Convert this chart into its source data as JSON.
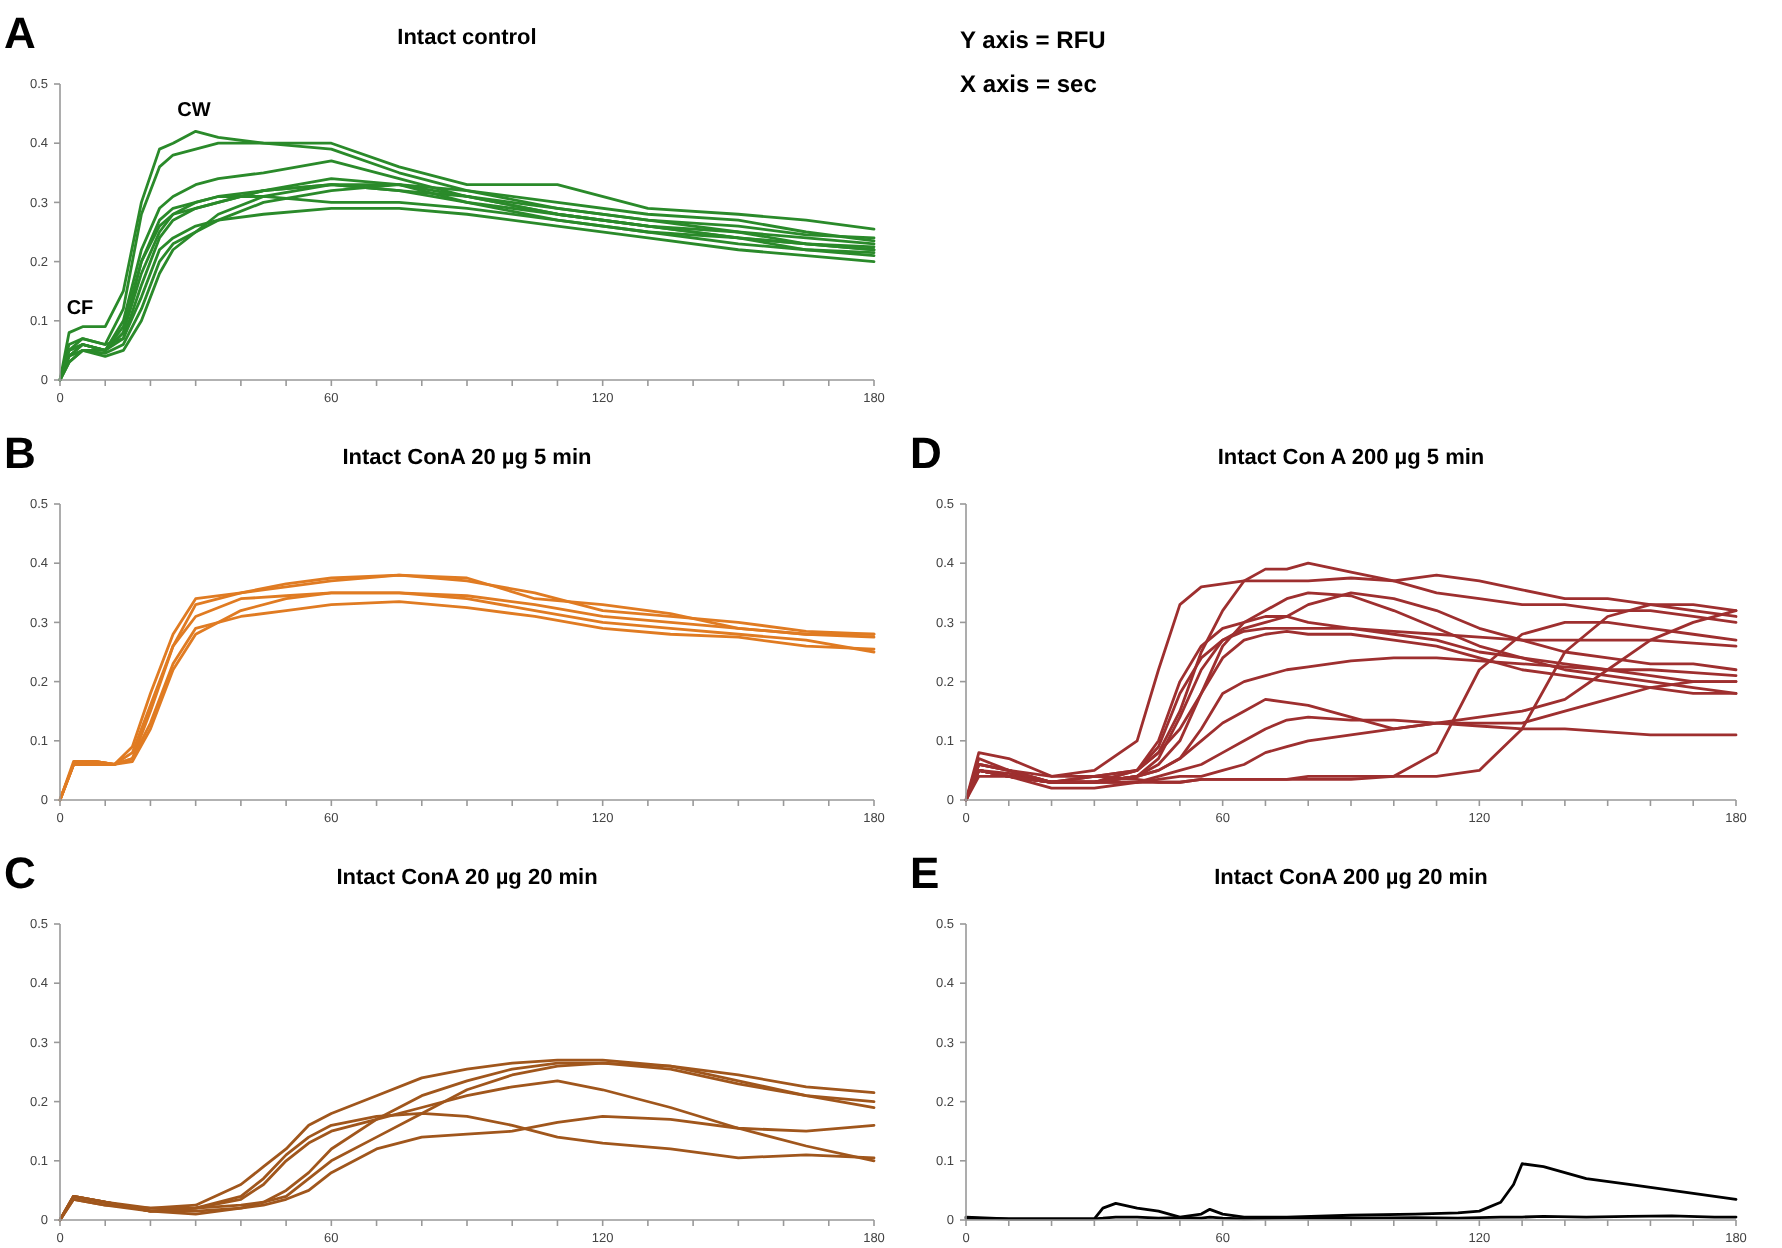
{
  "chart_data": [
    {
      "type": "line",
      "title": "Intact control",
      "xlim": [
        0,
        180
      ],
      "ylim": [
        0,
        0.5
      ],
      "xticks": [
        0,
        {
          "value": 10,
          "label": null
        },
        {
          "value": 20,
          "label": null
        },
        {
          "value": 30,
          "label": null
        },
        {
          "value": 40,
          "label": null
        },
        {
          "value": 50,
          "label": null
        },
        60,
        {
          "value": 70,
          "label": null
        },
        {
          "value": 80,
          "label": null
        },
        {
          "value": 90,
          "label": null
        },
        {
          "value": 100,
          "label": null
        },
        {
          "value": 110,
          "label": null
        },
        120,
        {
          "value": 130,
          "label": null
        },
        {
          "value": 140,
          "label": null
        },
        {
          "value": 150,
          "label": null
        },
        {
          "value": 160,
          "label": null
        },
        {
          "value": 170,
          "label": null
        },
        180
      ],
      "yticks": [
        0,
        0.1,
        0.2,
        0.3,
        0.4,
        0.5
      ],
      "annotations": [
        "A",
        "Y axis = RFU",
        "X axis = sec",
        "CW",
        "CF"
      ],
      "x": [
        0,
        2,
        5,
        10,
        14,
        18,
        22,
        25,
        30,
        35,
        45,
        60,
        75,
        90,
        110,
        130,
        150,
        165,
        180
      ],
      "series": [
        {
          "color": "#2a8a2a",
          "values": [
            0,
            0.08,
            0.09,
            0.09,
            0.15,
            0.3,
            0.39,
            0.4,
            0.42,
            0.41,
            0.4,
            0.39,
            0.35,
            0.32,
            0.29,
            0.27,
            0.26,
            0.245,
            0.24
          ]
        },
        {
          "color": "#2a8a2a",
          "values": [
            0,
            0.06,
            0.07,
            0.06,
            0.12,
            0.28,
            0.36,
            0.38,
            0.39,
            0.4,
            0.4,
            0.4,
            0.36,
            0.33,
            0.33,
            0.29,
            0.28,
            0.27,
            0.255
          ]
        },
        {
          "color": "#2a8a2a",
          "values": [
            0,
            0.05,
            0.06,
            0.05,
            0.1,
            0.22,
            0.29,
            0.31,
            0.33,
            0.34,
            0.35,
            0.37,
            0.34,
            0.31,
            0.28,
            0.26,
            0.24,
            0.23,
            0.22
          ]
        },
        {
          "color": "#2a8a2a",
          "values": [
            0,
            0.04,
            0.06,
            0.05,
            0.08,
            0.2,
            0.27,
            0.29,
            0.3,
            0.31,
            0.32,
            0.34,
            0.33,
            0.3,
            0.27,
            0.25,
            0.24,
            0.22,
            0.21
          ]
        },
        {
          "color": "#2a8a2a",
          "values": [
            0,
            0.05,
            0.07,
            0.06,
            0.07,
            0.16,
            0.24,
            0.27,
            0.29,
            0.3,
            0.32,
            0.33,
            0.32,
            0.31,
            0.28,
            0.26,
            0.24,
            0.23,
            0.225
          ]
        },
        {
          "color": "#2a8a2a",
          "values": [
            0,
            0.03,
            0.05,
            0.045,
            0.06,
            0.12,
            0.2,
            0.23,
            0.25,
            0.27,
            0.3,
            0.32,
            0.33,
            0.31,
            0.29,
            0.27,
            0.25,
            0.24,
            0.23
          ]
        },
        {
          "color": "#2a8a2a",
          "values": [
            0,
            0.04,
            0.05,
            0.04,
            0.05,
            0.1,
            0.18,
            0.22,
            0.25,
            0.28,
            0.31,
            0.33,
            0.32,
            0.3,
            0.28,
            0.26,
            0.25,
            0.23,
            0.22
          ]
        },
        {
          "color": "#2a8a2a",
          "values": [
            0,
            0.03,
            0.05,
            0.05,
            0.07,
            0.14,
            0.22,
            0.24,
            0.26,
            0.27,
            0.28,
            0.29,
            0.29,
            0.28,
            0.26,
            0.24,
            0.22,
            0.21,
            0.2
          ]
        },
        {
          "color": "#2a8a2a",
          "values": [
            0,
            0.04,
            0.06,
            0.05,
            0.08,
            0.18,
            0.25,
            0.28,
            0.3,
            0.31,
            0.31,
            0.3,
            0.3,
            0.29,
            0.27,
            0.25,
            0.23,
            0.22,
            0.215
          ]
        },
        {
          "color": "#2a8a2a",
          "values": [
            0,
            0.05,
            0.06,
            0.05,
            0.09,
            0.2,
            0.26,
            0.28,
            0.29,
            0.3,
            0.32,
            0.33,
            0.33,
            0.32,
            0.3,
            0.28,
            0.27,
            0.25,
            0.235
          ]
        }
      ]
    },
    {
      "type": "line",
      "title": "Intact ConA 20 µg 5 min",
      "xlim": [
        0,
        180
      ],
      "ylim": [
        0,
        0.5
      ],
      "xticks": [
        0,
        {
          "value": 10,
          "label": null
        },
        {
          "value": 20,
          "label": null
        },
        {
          "value": 30,
          "label": null
        },
        {
          "value": 40,
          "label": null
        },
        {
          "value": 50,
          "label": null
        },
        60,
        {
          "value": 70,
          "label": null
        },
        {
          "value": 80,
          "label": null
        },
        {
          "value": 90,
          "label": null
        },
        {
          "value": 100,
          "label": null
        },
        {
          "value": 110,
          "label": null
        },
        120,
        {
          "value": 130,
          "label": null
        },
        {
          "value": 140,
          "label": null
        },
        {
          "value": 150,
          "label": null
        },
        {
          "value": 160,
          "label": null
        },
        {
          "value": 170,
          "label": null
        },
        180
      ],
      "yticks": [
        0,
        0.1,
        0.2,
        0.3,
        0.4,
        0.5
      ],
      "annotations": [
        "B"
      ],
      "x": [
        0,
        3,
        8,
        12,
        16,
        20,
        25,
        30,
        40,
        50,
        60,
        75,
        90,
        105,
        120,
        135,
        150,
        165,
        180
      ],
      "series": [
        {
          "color": "#e07b22",
          "values": [
            0,
            0.06,
            0.065,
            0.06,
            0.07,
            0.15,
            0.26,
            0.33,
            0.35,
            0.36,
            0.37,
            0.38,
            0.37,
            0.35,
            0.32,
            0.31,
            0.3,
            0.285,
            0.28
          ]
        },
        {
          "color": "#e07b22",
          "values": [
            0,
            0.065,
            0.065,
            0.06,
            0.09,
            0.18,
            0.28,
            0.34,
            0.35,
            0.365,
            0.375,
            0.38,
            0.375,
            0.34,
            0.33,
            0.315,
            0.29,
            0.28,
            0.275
          ]
        },
        {
          "color": "#e07b22",
          "values": [
            0,
            0.06,
            0.06,
            0.06,
            0.08,
            0.16,
            0.26,
            0.31,
            0.34,
            0.345,
            0.35,
            0.35,
            0.345,
            0.33,
            0.31,
            0.3,
            0.29,
            0.28,
            0.28
          ]
        },
        {
          "color": "#e07b22",
          "values": [
            0,
            0.06,
            0.065,
            0.06,
            0.07,
            0.13,
            0.23,
            0.29,
            0.31,
            0.32,
            0.33,
            0.335,
            0.325,
            0.31,
            0.29,
            0.28,
            0.275,
            0.26,
            0.255
          ]
        },
        {
          "color": "#e07b22",
          "values": [
            0,
            0.06,
            0.065,
            0.06,
            0.065,
            0.12,
            0.22,
            0.28,
            0.32,
            0.34,
            0.35,
            0.35,
            0.34,
            0.32,
            0.3,
            0.29,
            0.28,
            0.27,
            0.25
          ]
        }
      ]
    },
    {
      "type": "line",
      "title": "Intact Con A 200 µg 5 min",
      "xlim": [
        0,
        180
      ],
      "ylim": [
        0,
        0.5
      ],
      "xticks": [
        0,
        {
          "value": 10,
          "label": null
        },
        {
          "value": 20,
          "label": null
        },
        {
          "value": 30,
          "label": null
        },
        {
          "value": 40,
          "label": null
        },
        {
          "value": 50,
          "label": null
        },
        60,
        {
          "value": 70,
          "label": null
        },
        {
          "value": 80,
          "label": null
        },
        {
          "value": 90,
          "label": null
        },
        {
          "value": 100,
          "label": null
        },
        {
          "value": 110,
          "label": null
        },
        120,
        {
          "value": 130,
          "label": null
        },
        {
          "value": 140,
          "label": null
        },
        {
          "value": 150,
          "label": null
        },
        {
          "value": 160,
          "label": null
        },
        {
          "value": 170,
          "label": null
        },
        180
      ],
      "yticks": [
        0,
        0.1,
        0.2,
        0.3,
        0.4,
        0.5
      ],
      "annotations": [
        "D"
      ],
      "x": [
        0,
        3,
        10,
        20,
        30,
        40,
        45,
        50,
        55,
        60,
        65,
        70,
        75,
        80,
        90,
        100,
        110,
        120,
        130,
        140,
        150,
        160,
        170,
        180
      ],
      "series": [
        {
          "color": "#9e2f2f",
          "values": [
            0,
            0.08,
            0.07,
            0.04,
            0.05,
            0.1,
            0.22,
            0.33,
            0.36,
            0.365,
            0.37,
            0.37,
            0.37,
            0.37,
            0.375,
            0.37,
            0.38,
            0.37,
            0.355,
            0.34,
            0.34,
            0.33,
            0.32,
            0.31
          ]
        },
        {
          "color": "#9e2f2f",
          "values": [
            0,
            0.06,
            0.05,
            0.03,
            0.03,
            0.05,
            0.08,
            0.15,
            0.25,
            0.32,
            0.37,
            0.39,
            0.39,
            0.4,
            0.385,
            0.37,
            0.35,
            0.34,
            0.33,
            0.33,
            0.32,
            0.32,
            0.31,
            0.3
          ]
        },
        {
          "color": "#9e2f2f",
          "values": [
            0,
            0.05,
            0.04,
            0.03,
            0.03,
            0.04,
            0.06,
            0.1,
            0.18,
            0.26,
            0.3,
            0.32,
            0.34,
            0.35,
            0.345,
            0.32,
            0.29,
            0.26,
            0.24,
            0.22,
            0.21,
            0.2,
            0.19,
            0.18
          ]
        },
        {
          "color": "#9e2f2f",
          "values": [
            0,
            0.05,
            0.04,
            0.03,
            0.04,
            0.05,
            0.09,
            0.18,
            0.24,
            0.27,
            0.285,
            0.29,
            0.29,
            0.29,
            0.29,
            0.285,
            0.28,
            0.275,
            0.27,
            0.27,
            0.27,
            0.27,
            0.265,
            0.26
          ]
        },
        {
          "color": "#9e2f2f",
          "values": [
            0,
            0.05,
            0.045,
            0.03,
            0.03,
            0.05,
            0.1,
            0.2,
            0.26,
            0.29,
            0.3,
            0.31,
            0.31,
            0.3,
            0.29,
            0.28,
            0.27,
            0.25,
            0.24,
            0.23,
            0.22,
            0.21,
            0.2,
            0.2
          ]
        },
        {
          "color": "#9e2f2f",
          "values": [
            0,
            0.05,
            0.04,
            0.03,
            0.03,
            0.04,
            0.05,
            0.07,
            0.12,
            0.18,
            0.2,
            0.21,
            0.22,
            0.225,
            0.235,
            0.24,
            0.24,
            0.235,
            0.23,
            0.225,
            0.22,
            0.22,
            0.215,
            0.21
          ]
        },
        {
          "color": "#9e2f2f",
          "values": [
            0,
            0.05,
            0.04,
            0.03,
            0.03,
            0.04,
            0.05,
            0.07,
            0.1,
            0.13,
            0.15,
            0.17,
            0.165,
            0.16,
            0.14,
            0.12,
            0.13,
            0.13,
            0.13,
            0.15,
            0.17,
            0.19,
            0.2,
            0.2
          ]
        },
        {
          "color": "#9e2f2f",
          "values": [
            0,
            0.04,
            0.04,
            0.02,
            0.02,
            0.03,
            0.04,
            0.05,
            0.06,
            0.08,
            0.1,
            0.12,
            0.135,
            0.14,
            0.135,
            0.135,
            0.13,
            0.125,
            0.12,
            0.12,
            0.115,
            0.11,
            0.11,
            0.11
          ]
        },
        {
          "color": "#9e2f2f",
          "values": [
            0,
            0.05,
            0.04,
            0.03,
            0.03,
            0.03,
            0.03,
            0.03,
            0.035,
            0.035,
            0.035,
            0.035,
            0.035,
            0.04,
            0.04,
            0.04,
            0.08,
            0.22,
            0.28,
            0.3,
            0.3,
            0.29,
            0.28,
            0.27
          ]
        },
        {
          "color": "#9e2f2f",
          "values": [
            0,
            0.06,
            0.05,
            0.03,
            0.04,
            0.035,
            0.03,
            0.03,
            0.035,
            0.035,
            0.035,
            0.035,
            0.035,
            0.035,
            0.035,
            0.04,
            0.04,
            0.05,
            0.12,
            0.25,
            0.31,
            0.33,
            0.33,
            0.32
          ]
        },
        {
          "color": "#9e2f2f",
          "values": [
            0,
            0.05,
            0.04,
            0.03,
            0.03,
            0.03,
            0.035,
            0.04,
            0.04,
            0.05,
            0.06,
            0.08,
            0.09,
            0.1,
            0.11,
            0.12,
            0.13,
            0.14,
            0.15,
            0.17,
            0.22,
            0.27,
            0.3,
            0.32
          ]
        },
        {
          "color": "#9e2f2f",
          "values": [
            0,
            0.07,
            0.05,
            0.03,
            0.03,
            0.04,
            0.07,
            0.14,
            0.22,
            0.27,
            0.29,
            0.3,
            0.31,
            0.33,
            0.35,
            0.34,
            0.32,
            0.29,
            0.27,
            0.25,
            0.24,
            0.23,
            0.23,
            0.22
          ]
        },
        {
          "color": "#9e2f2f",
          "values": [
            0,
            0.06,
            0.05,
            0.04,
            0.04,
            0.05,
            0.08,
            0.12,
            0.18,
            0.24,
            0.27,
            0.28,
            0.285,
            0.28,
            0.28,
            0.27,
            0.26,
            0.24,
            0.22,
            0.21,
            0.2,
            0.19,
            0.18,
            0.18
          ]
        }
      ]
    },
    {
      "type": "line",
      "title": "Intact  ConA 20 µg 20 min",
      "xlim": [
        0,
        180
      ],
      "ylim": [
        0,
        0.5
      ],
      "xticks": [
        0,
        {
          "value": 10,
          "label": null
        },
        {
          "value": 20,
          "label": null
        },
        {
          "value": 30,
          "label": null
        },
        {
          "value": 40,
          "label": null
        },
        {
          "value": 50,
          "label": null
        },
        60,
        {
          "value": 70,
          "label": null
        },
        {
          "value": 80,
          "label": null
        },
        {
          "value": 90,
          "label": null
        },
        {
          "value": 100,
          "label": null
        },
        {
          "value": 110,
          "label": null
        },
        120,
        {
          "value": 130,
          "label": null
        },
        {
          "value": 140,
          "label": null
        },
        {
          "value": 150,
          "label": null
        },
        {
          "value": 160,
          "label": null
        },
        {
          "value": 170,
          "label": null
        },
        180
      ],
      "yticks": [
        0,
        0.1,
        0.2,
        0.3,
        0.4,
        0.5
      ],
      "annotations": [
        "C"
      ],
      "x": [
        0,
        3,
        10,
        20,
        30,
        40,
        45,
        50,
        55,
        60,
        70,
        80,
        90,
        100,
        110,
        120,
        135,
        150,
        165,
        180
      ],
      "series": [
        {
          "color": "#a0561c",
          "values": [
            0,
            0.04,
            0.03,
            0.02,
            0.025,
            0.06,
            0.09,
            0.12,
            0.16,
            0.18,
            0.21,
            0.24,
            0.255,
            0.265,
            0.27,
            0.27,
            0.26,
            0.245,
            0.225,
            0.215
          ]
        },
        {
          "color": "#a0561c",
          "values": [
            0,
            0.04,
            0.03,
            0.015,
            0.02,
            0.04,
            0.07,
            0.11,
            0.14,
            0.16,
            0.175,
            0.18,
            0.175,
            0.16,
            0.14,
            0.13,
            0.12,
            0.105,
            0.11,
            0.105
          ]
        },
        {
          "color": "#a0561c",
          "values": [
            0,
            0.035,
            0.025,
            0.015,
            0.02,
            0.035,
            0.06,
            0.1,
            0.13,
            0.15,
            0.17,
            0.19,
            0.21,
            0.225,
            0.235,
            0.22,
            0.19,
            0.155,
            0.125,
            0.1
          ]
        },
        {
          "color": "#a0561c",
          "values": [
            0,
            0.04,
            0.03,
            0.015,
            0.015,
            0.02,
            0.03,
            0.05,
            0.08,
            0.12,
            0.17,
            0.21,
            0.235,
            0.255,
            0.265,
            0.265,
            0.26,
            0.235,
            0.21,
            0.19
          ]
        },
        {
          "color": "#a0561c",
          "values": [
            0,
            0.04,
            0.03,
            0.015,
            0.01,
            0.02,
            0.025,
            0.035,
            0.05,
            0.08,
            0.12,
            0.14,
            0.145,
            0.15,
            0.165,
            0.175,
            0.17,
            0.155,
            0.15,
            0.16
          ]
        },
        {
          "color": "#a0561c",
          "values": [
            0,
            0.035,
            0.025,
            0.02,
            0.02,
            0.025,
            0.03,
            0.04,
            0.07,
            0.1,
            0.14,
            0.18,
            0.22,
            0.245,
            0.26,
            0.265,
            0.255,
            0.23,
            0.21,
            0.2
          ]
        }
      ]
    },
    {
      "type": "line",
      "title": "Intact  ConA 200 µg 20 min",
      "xlim": [
        0,
        180
      ],
      "ylim": [
        0,
        0.5
      ],
      "xticks": [
        0,
        {
          "value": 10,
          "label": null
        },
        {
          "value": 20,
          "label": null
        },
        {
          "value": 30,
          "label": null
        },
        {
          "value": 40,
          "label": null
        },
        {
          "value": 50,
          "label": null
        },
        60,
        {
          "value": 70,
          "label": null
        },
        {
          "value": 80,
          "label": null
        },
        {
          "value": 90,
          "label": null
        },
        {
          "value": 100,
          "label": null
        },
        {
          "value": 110,
          "label": null
        },
        120,
        {
          "value": 130,
          "label": null
        },
        {
          "value": 140,
          "label": null
        },
        {
          "value": 150,
          "label": null
        },
        {
          "value": 160,
          "label": null
        },
        {
          "value": 170,
          "label": null
        },
        180
      ],
      "yticks": [
        0,
        0.1,
        0.2,
        0.3,
        0.4,
        0.5
      ],
      "annotations": [
        "E"
      ],
      "x": [
        0,
        10,
        20,
        30,
        32,
        35,
        40,
        45,
        50,
        55,
        57,
        60,
        65,
        75,
        90,
        105,
        115,
        120,
        125,
        128,
        130,
        135,
        145,
        155,
        165,
        175,
        180
      ],
      "series": [
        {
          "color": "#000000",
          "values": [
            0.005,
            0.002,
            0.002,
            0.002,
            0.02,
            0.028,
            0.02,
            0.015,
            0.005,
            0.01,
            0.018,
            0.01,
            0.005,
            0.005,
            0.008,
            0.01,
            0.012,
            0.015,
            0.03,
            0.06,
            0.095,
            0.09,
            0.07,
            0.06,
            0.05,
            0.04,
            0.035
          ]
        },
        {
          "color": "#000000",
          "values": [
            0.003,
            0.002,
            0.002,
            0.002,
            0.003,
            0.005,
            0.005,
            0.003,
            0.004,
            0.003,
            0.005,
            0.003,
            0.002,
            0.003,
            0.003,
            0.004,
            0.003,
            0.004,
            0.005,
            0.005,
            0.005,
            0.006,
            0.005,
            0.006,
            0.007,
            0.005,
            0.005
          ]
        }
      ]
    }
  ]
}
